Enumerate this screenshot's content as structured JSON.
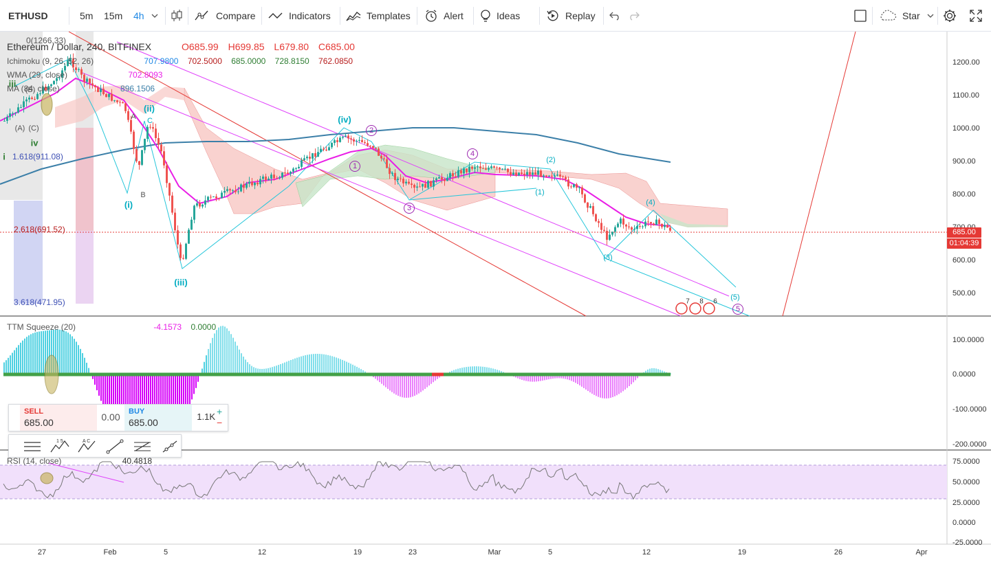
{
  "toolbar": {
    "symbol": "ETHUSD",
    "timeframes": [
      "5m",
      "15m",
      "4h"
    ],
    "compare": "Compare",
    "indicators": "Indicators",
    "templates": "Templates",
    "alert": "Alert",
    "ideas": "Ideas",
    "replay": "Replay",
    "star": "Star"
  },
  "legend": {
    "title": "Ethereum / Dollar, 240, BITFINEX",
    "open": "O685.99",
    "high": "H699.85",
    "low": "L679.80",
    "close": "C685.00",
    "ichimoku_label": "Ichimoku (9, 26, 52, 26)",
    "ichimoku_values": [
      "707.9800",
      "702.5000",
      "685.0000",
      "728.8150",
      "762.0850"
    ],
    "wma_label": "WMA (29, close)",
    "wma_value": "702.8093",
    "ma_label": "MA (84, close)",
    "ma_value": "896.1506",
    "ttm_label": "TTM Squeeze (20)",
    "ttm_values": [
      "-4.1573",
      "0.0000"
    ],
    "rsi_label": "RSI (14, close)",
    "rsi_value": "40.4818"
  },
  "price_axis": [
    "1200.00",
    "1100.00",
    "1000.00",
    "900.00",
    "800.00",
    "700.00",
    "600.00",
    "500.00"
  ],
  "ttm_axis": [
    "100.0000",
    "0.0000",
    "-100.0000",
    "-200.0000"
  ],
  "rsi_axis": [
    "75.0000",
    "50.0000",
    "25.0000",
    "0.0000",
    "-25.0000"
  ],
  "time_axis": [
    "27",
    "Feb",
    "5",
    "12",
    "19",
    "23",
    "Mar",
    "5",
    "12",
    "19",
    "26",
    "Apr"
  ],
  "last_price": "685.00",
  "countdown": "01:04:39",
  "fib": {
    "top_level": "0(1266.33)",
    "level_1618": "1.618(911.08)",
    "level_2618": "2.618(691.52)",
    "level_3618": "3.618(471.95)"
  },
  "waves": {
    "major": [
      "(iv)",
      "(iii)",
      "(ii)",
      "(i)",
      "iii",
      "iv"
    ],
    "abc": [
      "A",
      "B",
      "C"
    ],
    "circled": [
      "1",
      "2",
      "3",
      "4",
      "5"
    ],
    "parenthesized": [
      "(1)",
      "(2)",
      "(3)",
      "(4)",
      "(5)"
    ],
    "small": [
      "(A)",
      "(C)",
      "(B)",
      "i"
    ]
  },
  "events": [
    "7",
    "8",
    "6"
  ],
  "trade": {
    "sell_label": "SELL",
    "sell_price": "685.00",
    "spread": "0.00",
    "buy_label": "BUY",
    "buy_price": "685.00",
    "quantity": "1.1K",
    "plus": "+",
    "minus": "−"
  },
  "colors": {
    "up": "#26a69a",
    "down": "#ef5350",
    "wma": "#e91ee6",
    "ma": "#3b7fa8",
    "cloud_up": "#c8e6c9",
    "cloud_down": "#f8c8c4",
    "rsi_band": "#f1e0fb",
    "accent": "#1e88e5"
  }
}
